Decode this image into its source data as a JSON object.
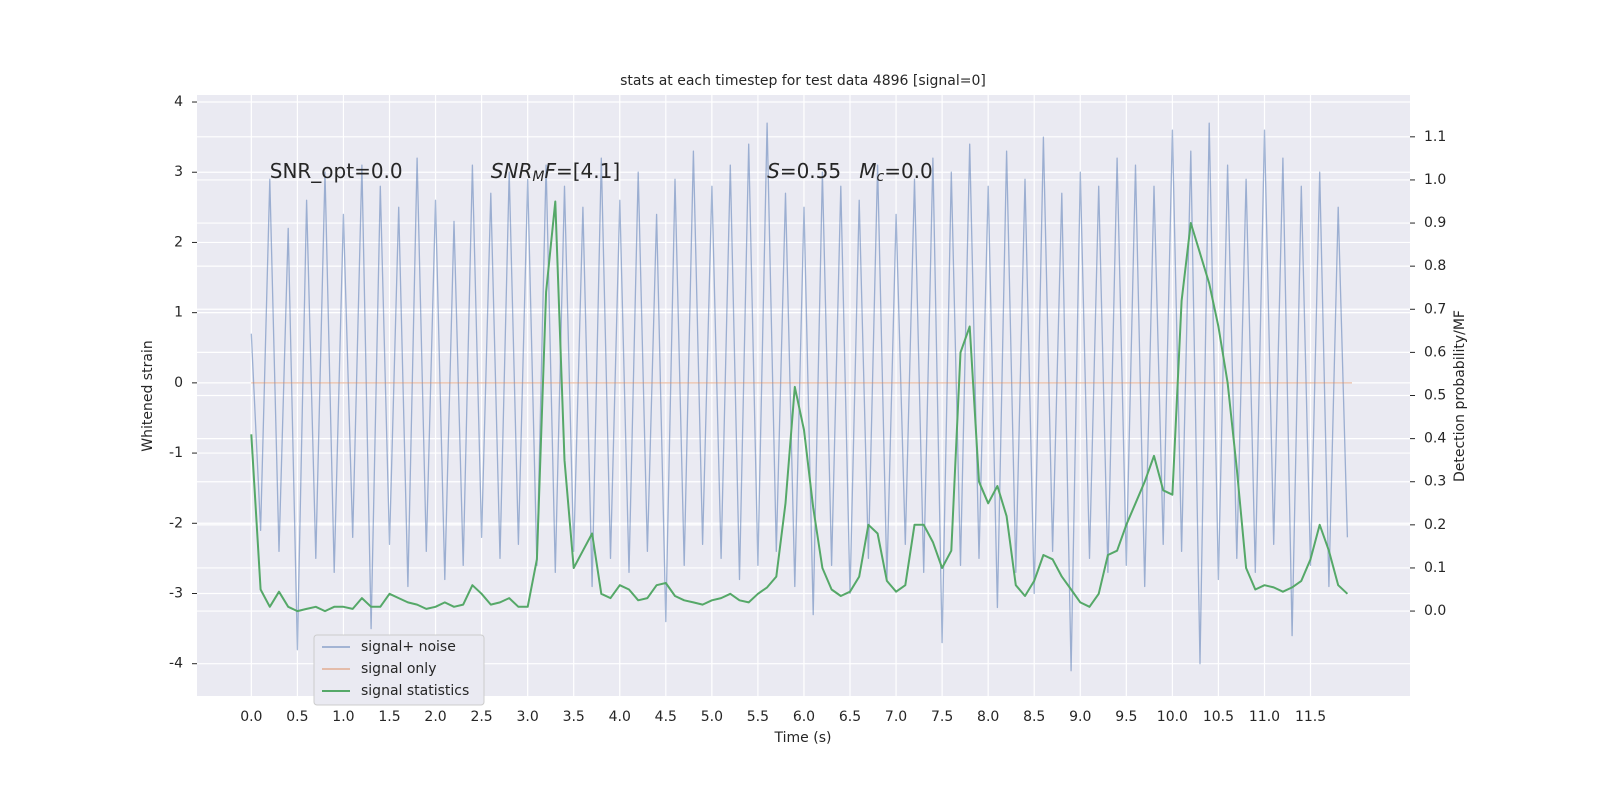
{
  "chart_data": {
    "type": "line",
    "title": "stats at each timestep for test data 4896 [signal=0]",
    "xlabel": "Time (s)",
    "ylabel": "Whitened strain",
    "y2label": "Detection probability/MF",
    "xlim": [
      -0.59,
      12.58
    ],
    "ylim": [
      -4.46,
      4.1
    ],
    "y2lim": [
      -0.197,
      1.197
    ],
    "xticks": [
      {
        "value": 0,
        "label": "0.0"
      },
      {
        "value": 0.5,
        "label": "0.5"
      },
      {
        "value": 1,
        "label": "1.0"
      },
      {
        "value": 1.5,
        "label": "1.5"
      },
      {
        "value": 2,
        "label": "2.0"
      },
      {
        "value": 2.5,
        "label": "2.5"
      },
      {
        "value": 3,
        "label": "3.0"
      },
      {
        "value": 3.5,
        "label": "3.5"
      },
      {
        "value": 4,
        "label": "4.0"
      },
      {
        "value": 4.5,
        "label": "4.5"
      },
      {
        "value": 5,
        "label": "5.0"
      },
      {
        "value": 5.5,
        "label": "5.5"
      },
      {
        "value": 6,
        "label": "6.0"
      },
      {
        "value": 6.5,
        "label": "6.5"
      },
      {
        "value": 7,
        "label": "7.0"
      },
      {
        "value": 7.5,
        "label": "7.5"
      },
      {
        "value": 8,
        "label": "8.0"
      },
      {
        "value": 8.5,
        "label": "8.5"
      },
      {
        "value": 9,
        "label": "9.0"
      },
      {
        "value": 9.5,
        "label": "9.5"
      },
      {
        "value": 10,
        "label": "10.0"
      },
      {
        "value": 10.5,
        "label": "10.5"
      },
      {
        "value": 11,
        "label": "11.0"
      },
      {
        "value": 11.5,
        "label": "11.5"
      }
    ],
    "yticks": [
      -4,
      -3,
      -2,
      -1,
      0,
      1,
      2,
      3,
      4
    ],
    "y2ticks": [
      {
        "value": 0,
        "label": "0.0"
      },
      0.1,
      0.2,
      0.3,
      0.4,
      0.5,
      0.6,
      0.7,
      0.8,
      0.9,
      {
        "value": 1,
        "label": "1.0"
      },
      1.1
    ],
    "grid": true,
    "legend": "lower left",
    "x": [
      0.0,
      0.1,
      0.2,
      0.3,
      0.4,
      0.5,
      0.6,
      0.7,
      0.8,
      0.9,
      1.0,
      1.1,
      1.2,
      1.3,
      1.4,
      1.5,
      1.6,
      1.7,
      1.8,
      1.9,
      2.0,
      2.1,
      2.2,
      2.3,
      2.4,
      2.5,
      2.6,
      2.7,
      2.8,
      2.9,
      3.0,
      3.1,
      3.2,
      3.3,
      3.4,
      3.5,
      3.6,
      3.7,
      3.8,
      3.9,
      4.0,
      4.1,
      4.2,
      4.3,
      4.4,
      4.5,
      4.6,
      4.7,
      4.8,
      4.9,
      5.0,
      5.1,
      5.2,
      5.3,
      5.4,
      5.5,
      5.6,
      5.7,
      5.8,
      5.9,
      6.0,
      6.1,
      6.2,
      6.3,
      6.4,
      6.5,
      6.6,
      6.7,
      6.8,
      6.9,
      7.0,
      7.1,
      7.2,
      7.3,
      7.4,
      7.5,
      7.6,
      7.7,
      7.8,
      7.9,
      8.0,
      8.1,
      8.2,
      8.3,
      8.4,
      8.5,
      8.6,
      8.7,
      8.8,
      8.9,
      9.0,
      9.1,
      9.2,
      9.3,
      9.4,
      9.5,
      9.6,
      9.7,
      9.8,
      9.9,
      10.0,
      10.1,
      10.2,
      10.3,
      10.4,
      10.5,
      10.6,
      10.7,
      10.8,
      10.9,
      11.0,
      11.1,
      11.2,
      11.3,
      11.4,
      11.5,
      11.6,
      11.7,
      11.8,
      11.9
    ],
    "series": [
      {
        "name": "signal+ noise",
        "color": "#4c72b0",
        "values": [
          0.7,
          -2.1,
          2.9,
          -2.4,
          2.2,
          -3.8,
          2.6,
          -2.5,
          3.0,
          -2.7,
          2.4,
          -2.2,
          3.1,
          -3.5,
          2.8,
          -2.3,
          2.5,
          -2.9,
          3.2,
          -2.4,
          2.6,
          -2.8,
          2.3,
          -2.6,
          3.1,
          -2.2,
          2.7,
          -2.5,
          3.0,
          -2.3,
          2.9,
          -2.6,
          3.1,
          -2.7,
          2.8,
          -2.4,
          2.5,
          -2.9,
          3.2,
          -2.5,
          2.6,
          -2.7,
          3.0,
          -2.4,
          2.4,
          -3.4,
          2.9,
          -2.6,
          3.3,
          -2.3,
          2.8,
          -2.5,
          3.1,
          -2.8,
          3.4,
          -2.6,
          3.7,
          -2.4,
          2.7,
          -2.9,
          2.5,
          -3.3,
          3.0,
          -2.6,
          2.8,
          -3.0,
          2.6,
          -2.5,
          3.1,
          -2.8,
          2.4,
          -2.3,
          2.9,
          -2.7,
          3.2,
          -3.7,
          3.0,
          -2.6,
          3.4,
          -2.5,
          2.8,
          -3.2,
          3.3,
          -2.7,
          2.9,
          -3.0,
          3.5,
          -2.4,
          2.7,
          -4.1,
          3.0,
          -2.5,
          2.8,
          -2.7,
          3.2,
          -2.6,
          3.1,
          -2.9,
          2.8,
          -2.3,
          3.6,
          -2.4,
          3.3,
          -4.0,
          3.7,
          -2.8,
          3.1,
          -2.5,
          2.9,
          -2.7,
          3.6,
          -2.3,
          3.2,
          -3.6,
          2.8,
          -2.6,
          3.0,
          -2.9,
          2.5,
          -2.2
        ]
      },
      {
        "name": "signal only",
        "color": "#dd8452",
        "x": [
          0.0,
          11.95
        ],
        "values": [
          0,
          0
        ]
      },
      {
        "name": "signal statistics",
        "color": "#55a868",
        "axis": "y2",
        "values": [
          0.41,
          0.05,
          0.01,
          0.045,
          0.01,
          0.0,
          0.005,
          0.01,
          0.0,
          0.01,
          0.01,
          0.005,
          0.03,
          0.01,
          0.01,
          0.04,
          0.03,
          0.02,
          0.015,
          0.005,
          0.01,
          0.02,
          0.01,
          0.015,
          0.06,
          0.04,
          0.015,
          0.02,
          0.03,
          0.01,
          0.01,
          0.12,
          0.74,
          0.95,
          0.35,
          0.1,
          0.14,
          0.18,
          0.04,
          0.03,
          0.06,
          0.05,
          0.025,
          0.03,
          0.06,
          0.065,
          0.035,
          0.025,
          0.02,
          0.015,
          0.025,
          0.03,
          0.04,
          0.025,
          0.02,
          0.04,
          0.055,
          0.08,
          0.25,
          0.52,
          0.42,
          0.24,
          0.1,
          0.05,
          0.035,
          0.045,
          0.08,
          0.2,
          0.18,
          0.07,
          0.045,
          0.06,
          0.2,
          0.2,
          0.16,
          0.1,
          0.14,
          0.6,
          0.66,
          0.3,
          0.25,
          0.29,
          0.22,
          0.06,
          0.035,
          0.07,
          0.13,
          0.12,
          0.08,
          0.05,
          0.02,
          0.01,
          0.04,
          0.13,
          0.14,
          0.2,
          0.25,
          0.3,
          0.36,
          0.28,
          0.27,
          0.72,
          0.9,
          0.83,
          0.76,
          0.66,
          0.53,
          0.33,
          0.1,
          0.05,
          0.06,
          0.055,
          0.045,
          0.055,
          0.07,
          0.12,
          0.2,
          0.14,
          0.06,
          0.04
        ]
      }
    ],
    "annotations": [
      {
        "x": 0.2,
        "y": 3,
        "runs": [
          {
            "text": "SNR_opt=0.0",
            "style": "normal"
          }
        ]
      },
      {
        "x": 2.6,
        "y": 3,
        "runs": [
          {
            "text": "SNR",
            "style": "italic"
          },
          {
            "text": "M",
            "style": "italic-sub"
          },
          {
            "text": "F",
            "style": "italic"
          },
          {
            "text": "=[4.1]",
            "style": "normal"
          }
        ]
      },
      {
        "x": 5.6,
        "y": 3,
        "runs": [
          {
            "text": "S",
            "style": "italic"
          },
          {
            "text": "=0.55",
            "style": "normal"
          }
        ]
      },
      {
        "x": 6.6,
        "y": 3,
        "runs": [
          {
            "text": "M",
            "style": "italic"
          },
          {
            "text": "c",
            "style": "italic-sub"
          },
          {
            "text": "=0.0",
            "style": "normal"
          }
        ]
      }
    ]
  }
}
